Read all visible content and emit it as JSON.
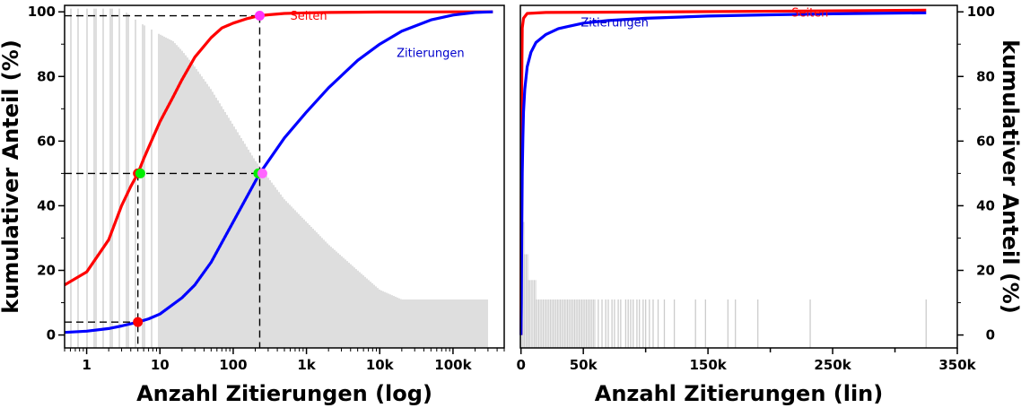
{
  "chart_data": [
    {
      "type": "line",
      "panel": "left",
      "xscale": "log",
      "xlabel": "Anzahl Zitierungen (log)",
      "ylabel": "kumulativer Anteil (%)",
      "xlim": [
        0.5,
        500000
      ],
      "ylim": [
        -4,
        102
      ],
      "xtick_values": [
        1,
        10,
        100,
        1000,
        10000,
        100000
      ],
      "xtick_labels": [
        "1",
        "10",
        "100",
        "1k",
        "10k",
        "100k"
      ],
      "ytick_values": [
        0,
        20,
        40,
        60,
        80,
        100
      ],
      "ytick_labels": [
        "0",
        "20",
        "40",
        "60",
        "80",
        "100"
      ],
      "grid": false,
      "series": [
        {
          "name": "Seiten",
          "color": "#ff0000",
          "x": [
            0.5,
            1,
            2,
            3,
            4,
            5,
            6,
            8,
            10,
            15,
            20,
            30,
            50,
            70,
            100,
            150,
            200,
            230,
            300,
            500,
            1000,
            2000,
            5000,
            10000,
            50000,
            100000,
            350000
          ],
          "y": [
            15.5,
            19.5,
            29.5,
            40,
            46,
            50,
            54.5,
            61,
            66,
            73.5,
            79,
            86,
            92,
            95,
            96.5,
            97.8,
            98.5,
            98.8,
            99.1,
            99.5,
            99.7,
            99.8,
            99.9,
            99.95,
            99.98,
            99.99,
            100
          ]
        },
        {
          "name": "Zitierungen",
          "color": "#0000ff",
          "x": [
            0.5,
            1,
            2,
            3,
            5,
            7,
            10,
            20,
            30,
            50,
            100,
            200,
            230,
            500,
            1000,
            2000,
            5000,
            10000,
            20000,
            50000,
            100000,
            200000,
            350000
          ],
          "y": [
            0.8,
            1.2,
            2.0,
            2.8,
            4.0,
            5.0,
            6.5,
            11.5,
            15.5,
            22.5,
            35,
            47.5,
            50,
            61,
            69,
            76.5,
            85,
            90,
            94,
            97.5,
            99,
            99.8,
            100
          ]
        }
      ],
      "histogram": {
        "color": "#cccccc",
        "envelope_x": [
          0.5,
          1,
          2,
          3,
          5,
          10,
          15,
          20,
          30,
          50,
          100,
          200,
          500,
          1000,
          2000,
          5000,
          10000,
          20000,
          50000,
          100000,
          300000
        ],
        "envelope_y": [
          101,
          101,
          101,
          101,
          97,
          93,
          91,
          88,
          83,
          76,
          65,
          54,
          42,
          35,
          28,
          20,
          14,
          11,
          11,
          11,
          11
        ]
      },
      "annotations": [
        {
          "type": "marker",
          "x": 5,
          "y": 50,
          "color": "#ff0000"
        },
        {
          "type": "marker",
          "x": 5.4,
          "y": 50,
          "color": "#00ee00"
        },
        {
          "type": "marker",
          "x": 5,
          "y": 4,
          "color": "#ff0000"
        },
        {
          "type": "marker",
          "x": 230,
          "y": 98.8,
          "color": "#ff33ff"
        },
        {
          "type": "marker",
          "x": 220,
          "y": 50,
          "color": "#00ee00"
        },
        {
          "type": "marker",
          "x": 250,
          "y": 50,
          "color": "#ff66ff"
        },
        {
          "type": "dashed",
          "points": [
            [
              0.5,
              50
            ],
            [
              230,
              50
            ]
          ]
        },
        {
          "type": "dashed",
          "points": [
            [
              5,
              50
            ],
            [
              5,
              -4
            ]
          ]
        },
        {
          "type": "dashed",
          "points": [
            [
              0.5,
              4
            ],
            [
              5,
              4
            ]
          ]
        },
        {
          "type": "dashed",
          "points": [
            [
              0.5,
              98.8
            ],
            [
              230,
              98.8
            ]
          ]
        },
        {
          "type": "dashed",
          "points": [
            [
              230,
              98.8
            ],
            [
              230,
              -4
            ]
          ]
        }
      ],
      "labels": [
        {
          "text": "Seiten",
          "x": 600,
          "y": 97.5,
          "color": "#ff0000"
        },
        {
          "text": "Zitierungen",
          "x": 17000,
          "y": 86,
          "color": "#0000cc"
        }
      ]
    },
    {
      "type": "line",
      "panel": "right",
      "xscale": "linear",
      "xlabel": "Anzahl Zitierungen (lin)",
      "ylabel": "kumulativer Anteil (%)",
      "xlim": [
        -500,
        350000
      ],
      "ylim": [
        -4,
        102
      ],
      "xtick_values": [
        0,
        50000,
        150000,
        250000,
        350000
      ],
      "xtick_labels": [
        "0",
        "50k",
        "150k",
        "250k",
        "350k"
      ],
      "ytick_values": [
        0,
        20,
        40,
        60,
        80,
        100
      ],
      "ytick_labels": [
        "0",
        "20",
        "40",
        "60",
        "80",
        "100"
      ],
      "grid": false,
      "series": [
        {
          "name": "Seiten",
          "color": "#ff0000",
          "x": [
            0,
            200,
            500,
            1000,
            2000,
            5000,
            20000,
            100000,
            325000
          ],
          "y": [
            0,
            40,
            75,
            95,
            98,
            99.5,
            99.8,
            99.95,
            100.5
          ]
        },
        {
          "name": "Zitierungen",
          "color": "#0000ff",
          "x": [
            0,
            300,
            600,
            1000,
            1500,
            2000,
            3000,
            5000,
            8000,
            12000,
            20000,
            30000,
            50000,
            70000,
            100000,
            150000,
            200000,
            250000,
            325000
          ],
          "y": [
            0,
            10,
            30,
            50,
            61,
            69,
            76,
            83,
            87.5,
            90.5,
            93,
            94.8,
            96.5,
            97.3,
            98,
            98.7,
            99.1,
            99.4,
            99.7
          ]
        }
      ],
      "histogram": {
        "color": "#cccccc",
        "ranges": [
          [
            0,
            3000,
            35
          ],
          [
            3000,
            6000,
            25
          ],
          [
            6000,
            12000,
            17
          ],
          [
            12000,
            60000,
            11
          ]
        ],
        "scattered_x": [
          62000,
          65000,
          68000,
          70000,
          73000,
          75000,
          78000,
          80000,
          84000,
          86000,
          88000,
          90000,
          93000,
          95000,
          98000,
          100000,
          103000,
          106000,
          110000,
          115000,
          123000,
          140000,
          148000,
          166000,
          172000,
          190000,
          232000,
          325000
        ],
        "scattered_height": 11
      },
      "labels": [
        {
          "text": "Zitierungen",
          "x": 48000,
          "y": 95.5,
          "color": "#0000cc"
        },
        {
          "text": "Seiten",
          "x": 217000,
          "y": 98.5,
          "color": "#ff0000"
        }
      ]
    }
  ]
}
